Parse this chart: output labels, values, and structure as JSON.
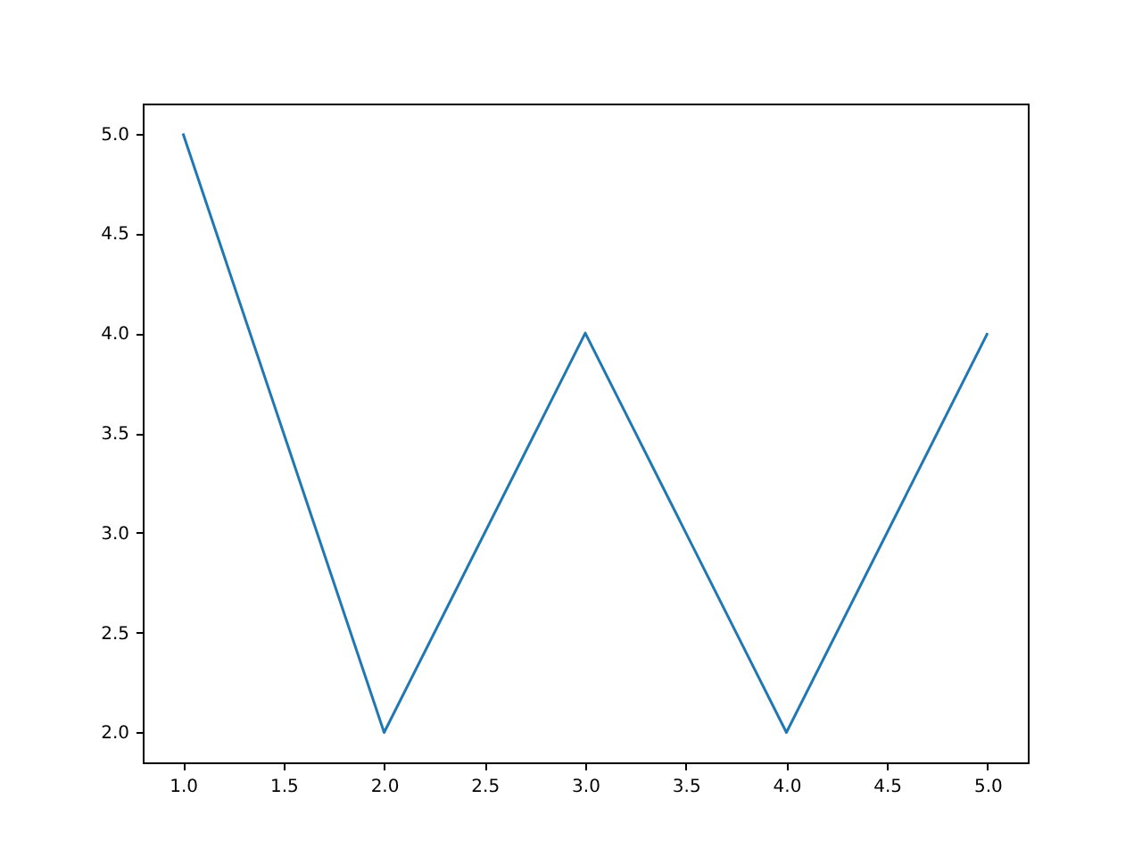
{
  "chart_data": {
    "type": "line",
    "x": [
      1,
      2,
      3,
      4,
      5
    ],
    "series": [
      {
        "color": "#1f77b4",
        "values": [
          5,
          2,
          4,
          2,
          4
        ]
      }
    ],
    "xlim": [
      0.8,
      5.2
    ],
    "ylim": [
      1.85,
      5.15
    ],
    "xticks": [
      {
        "value": 1,
        "label": "1.0"
      },
      {
        "value": 1.5,
        "label": "1.5"
      },
      {
        "value": 2,
        "label": "2.0"
      },
      {
        "value": 2.5,
        "label": "2.5"
      },
      {
        "value": 3,
        "label": "3.0"
      },
      {
        "value": 3.5,
        "label": "3.5"
      },
      {
        "value": 4,
        "label": "4.0"
      },
      {
        "value": 4.5,
        "label": "4.5"
      },
      {
        "value": 5,
        "label": "5.0"
      }
    ],
    "yticks": [
      {
        "value": 2,
        "label": "2.0"
      },
      {
        "value": 2.5,
        "label": "2.5"
      },
      {
        "value": 3,
        "label": "3.0"
      },
      {
        "value": 3.5,
        "label": "3.5"
      },
      {
        "value": 4,
        "label": "4.0"
      },
      {
        "value": 4.5,
        "label": "4.5"
      },
      {
        "value": 5,
        "label": "5.0"
      }
    ],
    "grid": false,
    "marker": "none",
    "line_style": "solid"
  }
}
